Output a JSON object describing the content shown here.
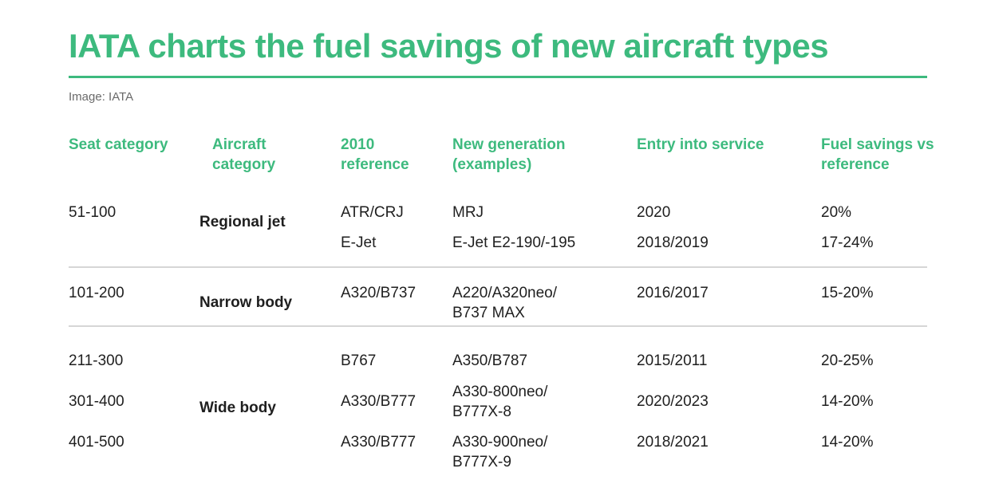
{
  "title": "IATA charts the fuel savings of new aircraft types",
  "credit": "Image: IATA",
  "headers": {
    "seat_category": "Seat category",
    "aircraft_category_l1": "Aircraft",
    "aircraft_category_l2": "category",
    "reference_l1": "2010",
    "reference_l2": "reference",
    "new_generation_l1": "New generation",
    "new_generation_l2": "(examples)",
    "entry_into_service": "Entry into service",
    "fuel_savings_l1": "Fuel savings vs",
    "fuel_savings_l2": "reference"
  },
  "groups": [
    {
      "category": "Regional jet",
      "rows": [
        {
          "seat": "51-100",
          "reference": "ATR/CRJ",
          "new_gen_l1": "MRJ",
          "new_gen_l2": "",
          "entry": "2020",
          "savings": "20%"
        },
        {
          "seat": "",
          "reference": "E-Jet",
          "new_gen_l1": "E-Jet E2-190/-195",
          "new_gen_l2": "",
          "entry": "2018/2019",
          "savings": "17-24%"
        }
      ]
    },
    {
      "category": "Narrow body",
      "rows": [
        {
          "seat": "101-200",
          "reference": "A320/B737",
          "new_gen_l1": "A220/A320neo/",
          "new_gen_l2": "B737 MAX",
          "entry": "2016/2017",
          "savings": "15-20%"
        }
      ]
    },
    {
      "category": "Wide body",
      "rows": [
        {
          "seat": "211-300",
          "reference": "B767",
          "new_gen_l1": "A350/B787",
          "new_gen_l2": "",
          "entry": "2015/2011",
          "savings": "20-25%"
        },
        {
          "seat": "301-400",
          "reference": "A330/B777",
          "new_gen_l1": "A330-800neo/",
          "new_gen_l2": "B777X-8",
          "entry": "2020/2023",
          "savings": "14-20%"
        },
        {
          "seat": "401-500",
          "reference": "A330/B777",
          "new_gen_l1": "A330-900neo/",
          "new_gen_l2": "B777X-9",
          "entry": "2018/2021",
          "savings": "14-20%"
        }
      ]
    }
  ]
}
